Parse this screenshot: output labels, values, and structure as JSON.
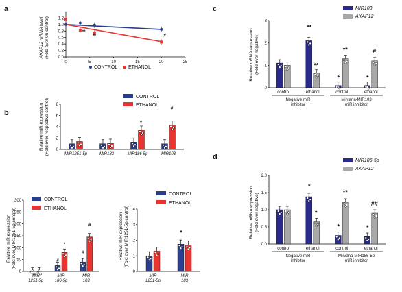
{
  "chart_data": [
    {
      "panel": "a",
      "type": "line",
      "ylabel_1": "AKAP12 mRNA level",
      "ylabel_2": "(Fold over 0h control)",
      "xlim": [
        0,
        25
      ],
      "ylim": [
        0,
        1.4
      ],
      "xticks": [
        0,
        5,
        10,
        15,
        20,
        25
      ],
      "yticks": [
        "0.0",
        "0.2",
        "0.4",
        "0.6",
        "0.8",
        "1.0",
        "1.2"
      ],
      "series": [
        {
          "name": "CONTROL",
          "color": "#2a3d8f",
          "x": [
            0,
            3,
            6,
            20
          ],
          "y": [
            1.0,
            1.05,
            0.98,
            0.85
          ]
        },
        {
          "name": "ETHANOL",
          "color": "#e8332f",
          "x": [
            0,
            3,
            6,
            20
          ],
          "y": [
            1.17,
            0.83,
            0.74,
            0.46
          ]
        }
      ],
      "fit": {
        "control": [
          1.0,
          0.85
        ],
        "ethanol": [
          1.0,
          0.47
        ]
      },
      "annotations": [
        "**",
        "**",
        "#"
      ],
      "legend": [
        "CONTROL",
        "ETHANOL"
      ]
    },
    {
      "panel": "b-top",
      "type": "bar",
      "ylabel_1": "Relative miR expression",
      "ylabel_2": "(Fold over respective control)",
      "ylim": [
        0,
        8
      ],
      "yticks": [
        "0",
        "2",
        "4",
        "6",
        "8"
      ],
      "categories": [
        "MIR1251-5p",
        "MIR183",
        "MIR186-5p",
        "MIR103"
      ],
      "series": [
        {
          "name": "CONTROL",
          "color": "#2a3d8f",
          "values": [
            1.0,
            1.0,
            1.3,
            1.0
          ]
        },
        {
          "name": "ETHANOL",
          "color": "#e8332f",
          "values": [
            1.4,
            1.1,
            3.4,
            4.3
          ]
        }
      ],
      "annotations": [
        "*",
        "#"
      ],
      "legend": [
        "CONTROL",
        "ETHANOL"
      ]
    },
    {
      "panel": "b-bottom-left",
      "type": "bar",
      "ylabel_1": "Relative miR expression",
      "ylabel_2": "(Fold over MIR1251-5p control)",
      "ylim": [
        0,
        300
      ],
      "yticks": [
        "0",
        "50",
        "100",
        "150",
        "200",
        "250",
        "300"
      ],
      "categories_1": [
        "MIR",
        "MIR",
        "MIR"
      ],
      "categories_2": [
        "1251-5p",
        "186-5p",
        "103"
      ],
      "series": [
        {
          "name": "CONTROL",
          "color": "#2a3d8f",
          "values": [
            1,
            25,
            40
          ]
        },
        {
          "name": "ETHANOL",
          "color": "#e8332f",
          "values": [
            1,
            80,
            145
          ]
        }
      ],
      "annotations": [
        "#",
        "*",
        "#",
        "#"
      ],
      "legend": [
        "CONTROL",
        "ETHANOL"
      ]
    },
    {
      "panel": "b-bottom-right",
      "type": "bar",
      "ylabel_1": "Relative miR expression",
      "ylabel_2": "(Fold over MIR1251-5p control)",
      "ylim": [
        0,
        4
      ],
      "yticks": [
        "0",
        "1",
        "2",
        "3",
        "4"
      ],
      "categories_1": [
        "MIR",
        "MIR"
      ],
      "categories_2": [
        "1251-5p",
        "183"
      ],
      "series": [
        {
          "name": "CONTROL",
          "color": "#2a3d8f",
          "values": [
            1.0,
            1.75
          ]
        },
        {
          "name": "ETHANOL",
          "color": "#e8332f",
          "values": [
            1.3,
            1.7
          ]
        }
      ],
      "annotations": [
        "*"
      ],
      "legend": [
        "CONTROL",
        "ETHANOL"
      ]
    },
    {
      "panel": "c",
      "type": "bar",
      "ylabel_1": "Relative mRNA expression",
      "ylabel_2": "(Fold over negative)",
      "ylim": [
        0,
        3
      ],
      "yticks": [
        "0",
        "1",
        "2",
        "3"
      ],
      "categories": [
        "control",
        "ethanol",
        "control",
        "ethanol"
      ],
      "groups": [
        {
          "line1": "Negative miR",
          "line2": "inhibitor"
        },
        {
          "line1": "Mirvana-MIR103",
          "line2": "miR inhibitor"
        }
      ],
      "series": [
        {
          "name": "MIR103",
          "color": "#2a2a8a",
          "values": [
            1.1,
            2.1,
            0.1,
            0.1
          ]
        },
        {
          "name": "AKAP12",
          "color": "#a8a8a8",
          "values": [
            1.0,
            0.65,
            1.3,
            1.2
          ]
        }
      ],
      "annotations": [
        "**",
        "**",
        "*",
        "**",
        "*",
        "#"
      ],
      "legend": [
        "MIR103",
        "AKAP12"
      ]
    },
    {
      "panel": "d",
      "type": "bar",
      "ylabel_1": "Relative mRNA expression",
      "ylabel_2": "(Fold over negative)",
      "ylim": [
        0,
        2
      ],
      "yticks": [
        "0.0",
        "0.5",
        "1.0",
        "1.5",
        "2.0"
      ],
      "categories": [
        "control",
        "ethanol",
        "control",
        "ethanol"
      ],
      "groups": [
        {
          "line1": "Negative miR",
          "line2": "inhibitor"
        },
        {
          "line1": "Mirvana-MIR186-5p",
          "line2": "miR inhibitor"
        }
      ],
      "series": [
        {
          "name": "MIR186-5p",
          "color": "#2a2a8a",
          "values": [
            1.0,
            1.38,
            0.25,
            0.22
          ]
        },
        {
          "name": "AKAP12",
          "color": "#a8a8a8",
          "values": [
            1.0,
            0.65,
            1.22,
            0.9
          ]
        }
      ],
      "annotations": [
        "*",
        "*",
        "*",
        "**",
        "*",
        "##"
      ],
      "legend": [
        "MIR186-5p",
        "AKAP12"
      ]
    }
  ],
  "panel_letters": [
    "a",
    "b",
    "c",
    "d"
  ]
}
